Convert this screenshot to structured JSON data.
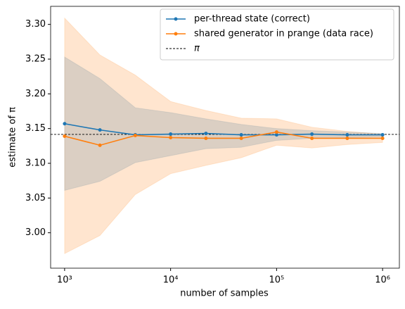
{
  "chart_data": {
    "type": "line",
    "xlabel": "number of samples",
    "ylabel": "estimate of π",
    "x": [
      1000,
      2154,
      4642,
      10000,
      21544,
      46416,
      100000,
      215443,
      464159,
      1000000
    ],
    "xscale": "log",
    "xlim": [
      738,
      1440000
    ],
    "xticks": [
      {
        "value": 1000,
        "label": "10³"
      },
      {
        "value": 10000,
        "label": "10⁴"
      },
      {
        "value": 100000,
        "label": "10⁵"
      },
      {
        "value": 1000000,
        "label": "10⁶"
      }
    ],
    "ylim": [
      2.949,
      3.326
    ],
    "yticks": [
      {
        "value": 3.0,
        "label": "3.00"
      },
      {
        "value": 3.05,
        "label": "3.05"
      },
      {
        "value": 3.1,
        "label": "3.10"
      },
      {
        "value": 3.15,
        "label": "3.15"
      },
      {
        "value": 3.2,
        "label": "3.20"
      },
      {
        "value": 3.25,
        "label": "3.25"
      },
      {
        "value": 3.3,
        "label": "3.30"
      }
    ],
    "legend": "upper right",
    "series": [
      {
        "name": "per-thread state (correct)",
        "color": "#1f77b4",
        "values": [
          3.157,
          3.148,
          3.141,
          3.142,
          3.143,
          3.141,
          3.141,
          3.142,
          3.141,
          3.141
        ],
        "band_upper": [
          3.253,
          3.222,
          3.18,
          3.173,
          3.164,
          3.156,
          3.15,
          3.147,
          3.145,
          3.143
        ],
        "band_lower": [
          3.061,
          3.074,
          3.101,
          3.111,
          3.121,
          3.123,
          3.133,
          3.136,
          3.137,
          3.138
        ]
      },
      {
        "name": "shared generator in prange (data race)",
        "color": "#ff7f0e",
        "values": [
          3.139,
          3.126,
          3.14,
          3.137,
          3.136,
          3.136,
          3.145,
          3.136,
          3.136,
          3.136
        ],
        "band_upper": [
          3.309,
          3.256,
          3.227,
          3.189,
          3.176,
          3.165,
          3.164,
          3.152,
          3.146,
          3.142
        ],
        "band_lower": [
          2.97,
          2.996,
          3.055,
          3.085,
          3.097,
          3.108,
          3.126,
          3.122,
          3.127,
          3.13
        ]
      }
    ],
    "reference_line": {
      "name": "π",
      "value": 3.14159,
      "color": "#000000"
    }
  }
}
